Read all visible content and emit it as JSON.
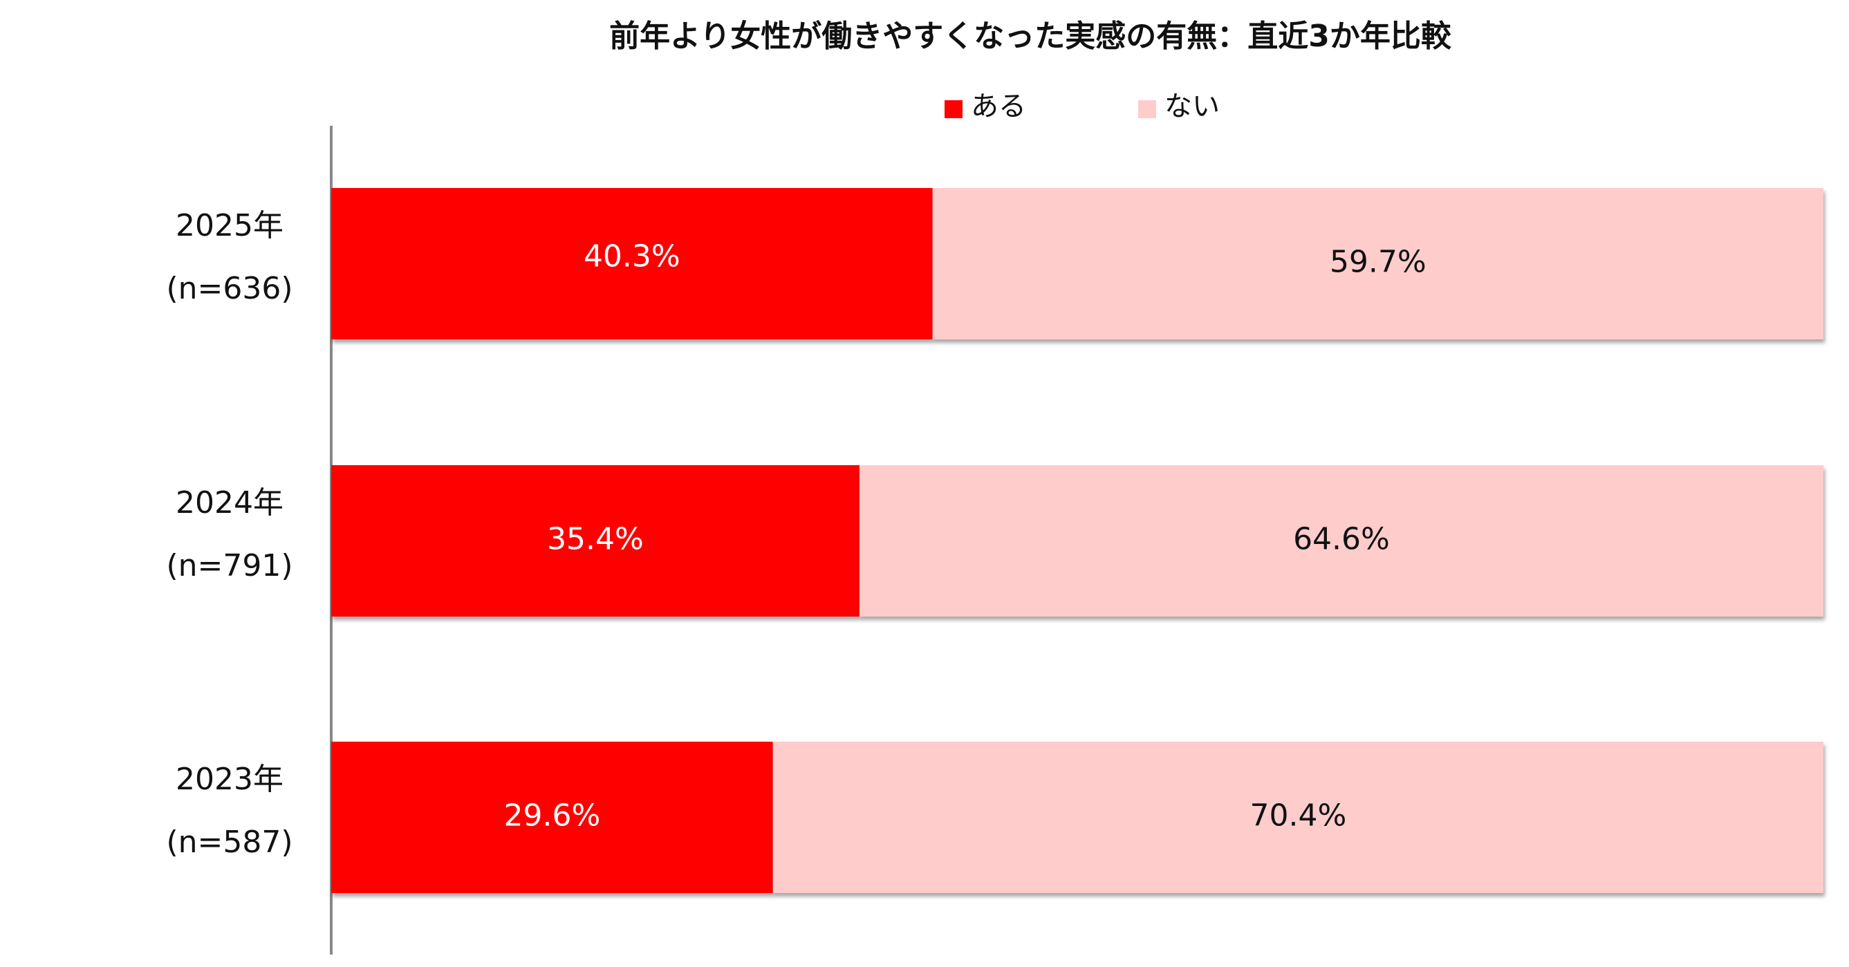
{
  "chart_data": {
    "type": "stacked-bar-horizontal",
    "title": "前年より女性が働きやすくなった実感の有無：直近3か年比較",
    "categories": [
      "2025年",
      "2024年",
      "2023年"
    ],
    "sample_sizes": [
      "(n=636)",
      "(n=791)",
      "(n=587)"
    ],
    "xlim": [
      0,
      100
    ],
    "series": [
      {
        "name": "ある",
        "color": "#ff0000",
        "label_color": "#ffffff",
        "values": [
          40.3,
          35.4,
          29.6
        ],
        "value_labels": [
          "40.3%",
          "35.4%",
          "29.6%"
        ]
      },
      {
        "name": "ない",
        "color": "#ffcccc",
        "label_color": "#111111",
        "values": [
          59.7,
          64.6,
          70.4
        ],
        "value_labels": [
          "59.7%",
          "64.6%",
          "70.4%"
        ]
      }
    ]
  }
}
